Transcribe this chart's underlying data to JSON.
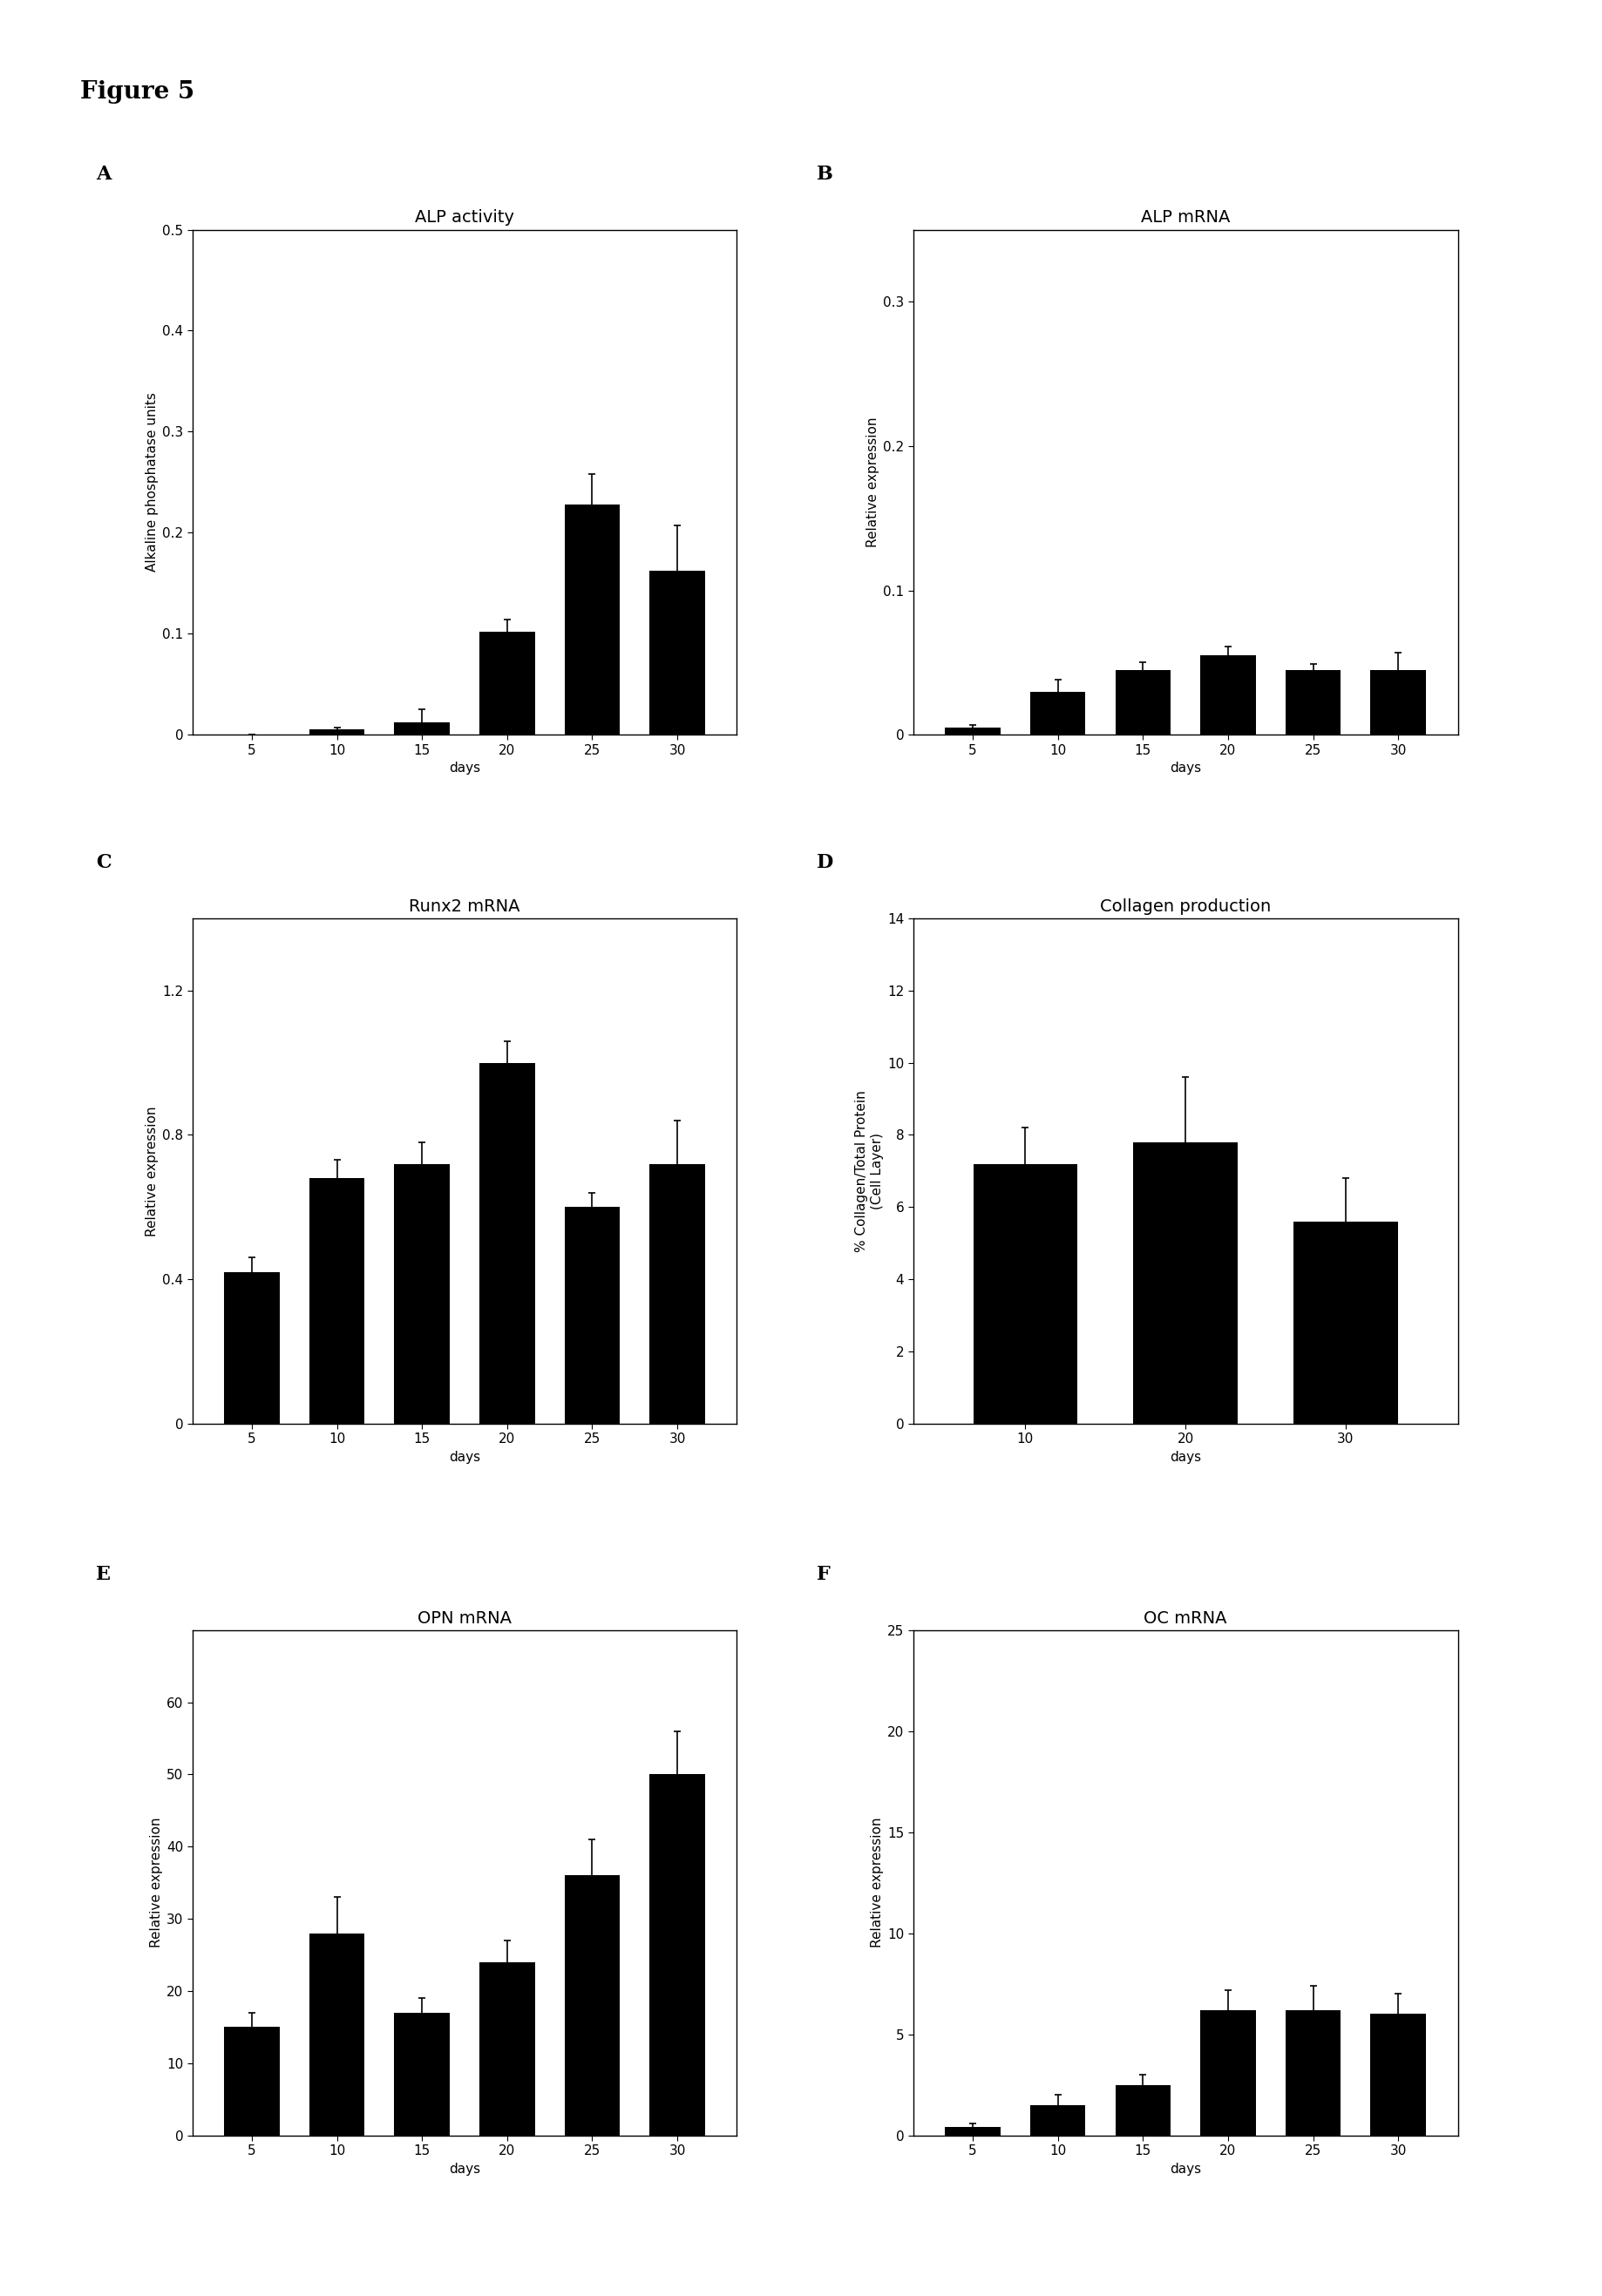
{
  "figure_title": "Figure 5",
  "panels": [
    {
      "label": "A",
      "title": "ALP activity",
      "ylabel": "Alkaline phosphatase units",
      "xlabel": "days",
      "x": [
        5,
        10,
        15,
        20,
        25,
        30
      ],
      "y": [
        0.0,
        0.005,
        0.012,
        0.102,
        0.228,
        0.162
      ],
      "yerr": [
        0.0,
        0.002,
        0.013,
        0.012,
        0.03,
        0.045
      ],
      "ylim": [
        0,
        0.5
      ],
      "yticks": [
        0,
        0.1,
        0.2,
        0.3,
        0.4,
        0.5
      ],
      "ytick_labels": [
        "0",
        "0.1",
        "0.2",
        "0.3",
        "0.4",
        "0.5"
      ]
    },
    {
      "label": "B",
      "title": "ALP mRNA",
      "ylabel": "Relative expression",
      "xlabel": "days",
      "x": [
        5,
        10,
        15,
        20,
        25,
        30
      ],
      "y": [
        0.005,
        0.03,
        0.045,
        0.055,
        0.045,
        0.045
      ],
      "yerr": [
        0.002,
        0.008,
        0.005,
        0.006,
        0.004,
        0.012
      ],
      "ylim": [
        0,
        0.35
      ],
      "yticks": [
        0,
        0.1,
        0.2,
        0.3
      ],
      "ytick_labels": [
        "0",
        "0.1",
        "0.2",
        "0.3"
      ]
    },
    {
      "label": "C",
      "title": "Runx2 mRNA",
      "ylabel": "Relative expression",
      "xlabel": "days",
      "x": [
        5,
        10,
        15,
        20,
        25,
        30
      ],
      "y": [
        0.42,
        0.68,
        0.72,
        1.0,
        0.6,
        0.72
      ],
      "yerr": [
        0.04,
        0.05,
        0.06,
        0.06,
        0.04,
        0.12
      ],
      "ylim": [
        0,
        1.4
      ],
      "yticks": [
        0,
        0.4,
        0.8,
        1.2
      ],
      "ytick_labels": [
        "0",
        "0.4",
        "0.8",
        "1.2"
      ]
    },
    {
      "label": "D",
      "title": "Collagen production",
      "ylabel": "% Collagen/Total Protein\n(Cell Layer)",
      "xlabel": "days",
      "x": [
        10,
        20,
        30
      ],
      "y": [
        7.2,
        7.8,
        5.6
      ],
      "yerr": [
        1.0,
        1.8,
        1.2
      ],
      "ylim": [
        0,
        14
      ],
      "yticks": [
        0,
        2,
        4,
        6,
        8,
        10,
        12,
        14
      ],
      "ytick_labels": [
        "0",
        "2",
        "4",
        "6",
        "8",
        "10",
        "12",
        "14"
      ]
    },
    {
      "label": "E",
      "title": "OPN mRNA",
      "ylabel": "Relative expression",
      "xlabel": "days",
      "x": [
        5,
        10,
        15,
        20,
        25,
        30
      ],
      "y": [
        15,
        28,
        17,
        24,
        36,
        50
      ],
      "yerr": [
        2,
        5,
        2,
        3,
        5,
        6
      ],
      "ylim": [
        0,
        70
      ],
      "yticks": [
        0,
        10,
        20,
        30,
        40,
        50,
        60
      ],
      "ytick_labels": [
        "0",
        "10",
        "20",
        "30",
        "40",
        "50",
        "60"
      ]
    },
    {
      "label": "F",
      "title": "OC mRNA",
      "ylabel": "Relative expression",
      "xlabel": "days",
      "x": [
        5,
        10,
        15,
        20,
        25,
        30
      ],
      "y": [
        0.4,
        1.5,
        2.5,
        6.2,
        6.2,
        6.0
      ],
      "yerr": [
        0.2,
        0.5,
        0.5,
        1.0,
        1.2,
        1.0
      ],
      "ylim": [
        0,
        25
      ],
      "yticks": [
        0,
        5,
        10,
        15,
        20,
        25
      ],
      "ytick_labels": [
        "0",
        "5",
        "10",
        "15",
        "20",
        "25"
      ]
    }
  ],
  "bar_color": "#000000",
  "bar_width": 0.65,
  "figure_label_fontsize": 16,
  "title_fontsize": 14,
  "axis_label_fontsize": 11,
  "tick_fontsize": 11,
  "panel_label_fontsize": 16
}
